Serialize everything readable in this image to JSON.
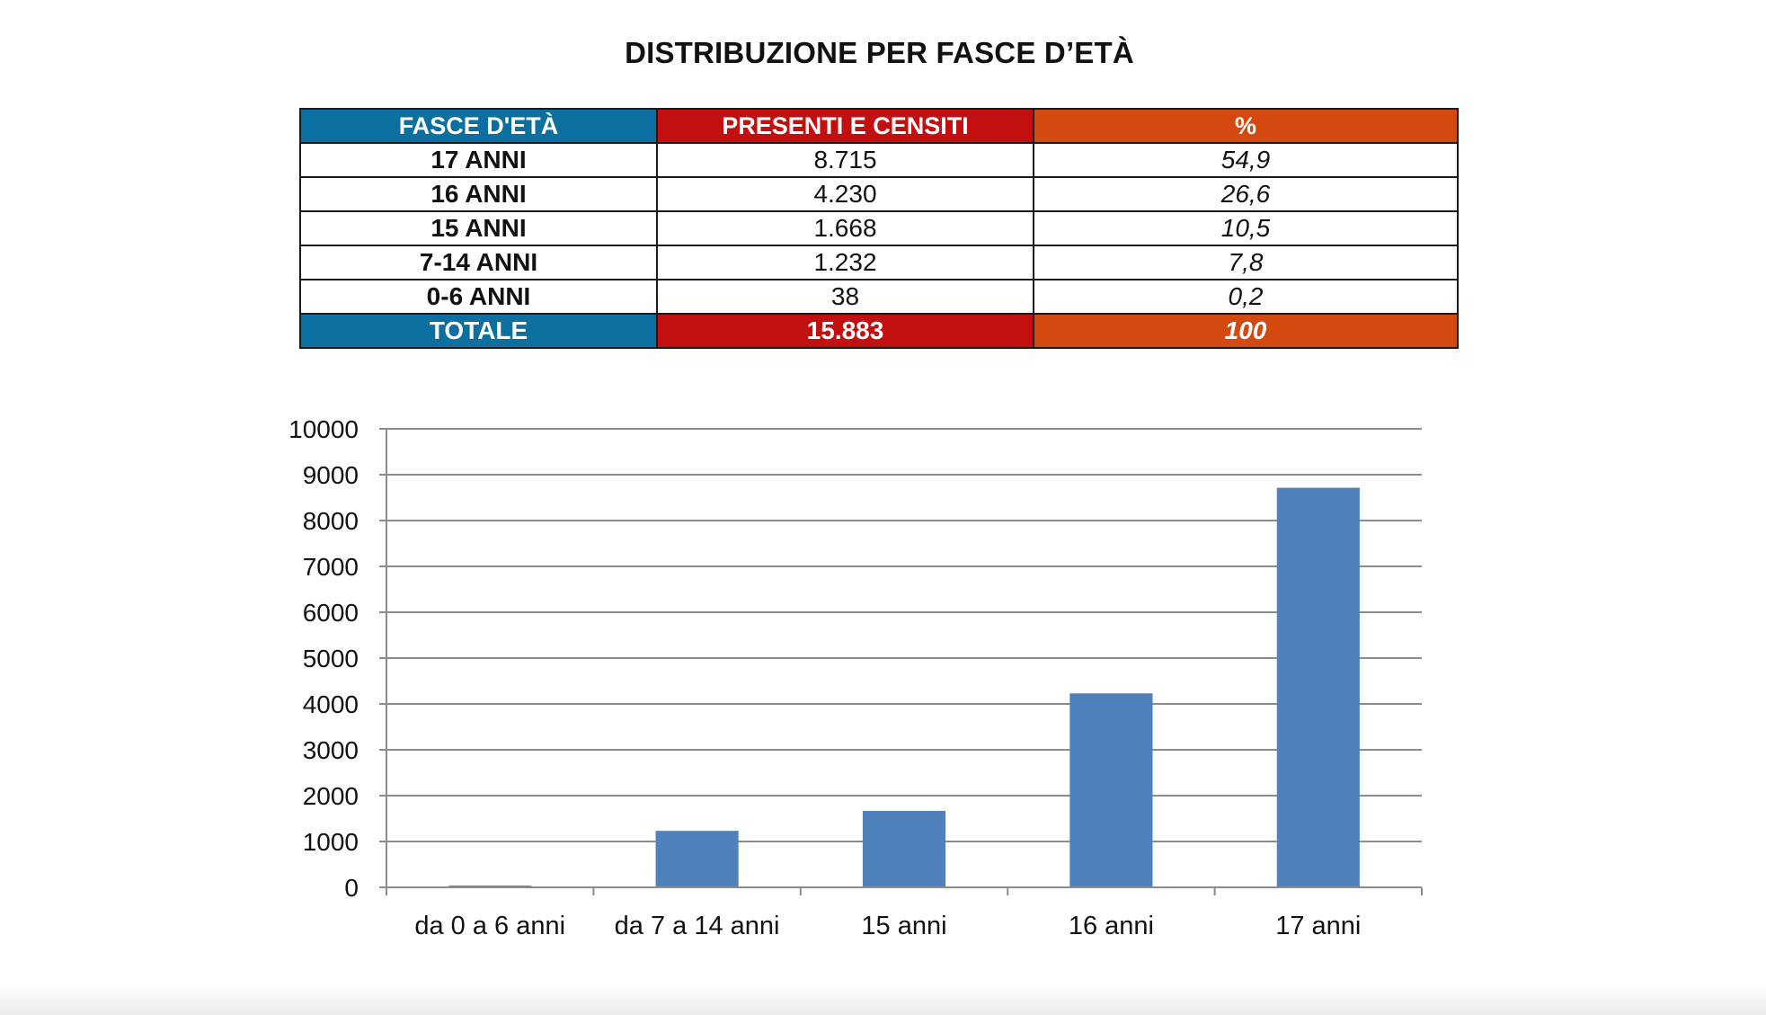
{
  "title": "DISTRIBUZIONE PER FASCE D’ETÀ",
  "table": {
    "headers": {
      "age": "FASCE D'ETÀ",
      "count": "PRESENTI E CENSITI",
      "pct": "%"
    },
    "rows": [
      {
        "age": "17 ANNI",
        "count": "8.715",
        "pct": "54,9"
      },
      {
        "age": "16 ANNI",
        "count": "4.230",
        "pct": "26,6"
      },
      {
        "age": "15 ANNI",
        "count": "1.668",
        "pct": "10,5"
      },
      {
        "age": "7-14 ANNI",
        "count": "1.232",
        "pct": "7,8"
      },
      {
        "age": "0-6 ANNI",
        "count": "38",
        "pct": "0,2"
      }
    ],
    "total": {
      "age": "TOTALE",
      "count": "15.883",
      "pct": "100"
    },
    "colors": {
      "age_header": "#0b6f9f",
      "count_header": "#c20f0f",
      "pct_header": "#d4490f"
    }
  },
  "chart_data": {
    "type": "bar",
    "categories": [
      "da 0 a 6 anni",
      "da 7 a 14 anni",
      "15 anni",
      "16 anni",
      "17 anni"
    ],
    "values": [
      38,
      1232,
      1668,
      4230,
      8715
    ],
    "title": "",
    "xlabel": "",
    "ylabel": "",
    "ylim": [
      0,
      10000
    ],
    "yticks": [
      0,
      1000,
      2000,
      3000,
      4000,
      5000,
      6000,
      7000,
      8000,
      9000,
      10000
    ],
    "grid": true,
    "legend": "none",
    "bar_color": "#4f81bd",
    "grid_color": "#8c8c8c"
  }
}
